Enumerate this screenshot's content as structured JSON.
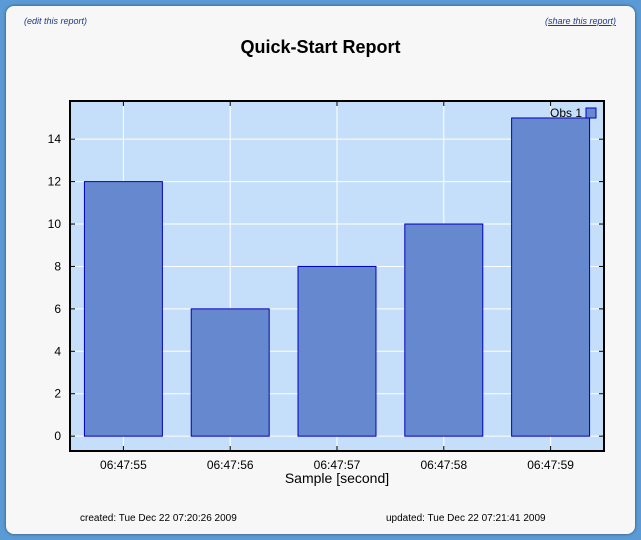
{
  "links": {
    "edit": "(edit this report)",
    "share": "(share this report)"
  },
  "report": {
    "title": "Quick-Start Report",
    "created": "created: Tue Dec 22 07:20:26 2009",
    "updated": "updated: Tue Dec 22 07:21:41 2009"
  },
  "colors": {
    "plot_bg": "#c5dffb",
    "bar_fill": "#6688cf",
    "bar_stroke": "#0000bb"
  },
  "chart_data": {
    "type": "bar",
    "categories": [
      "06:47:55",
      "06:47:56",
      "06:47:57",
      "06:47:58",
      "06:47:59"
    ],
    "series": [
      {
        "name": "Obs 1",
        "values": [
          12,
          6,
          8,
          10,
          15
        ]
      }
    ],
    "xlabel": "Sample [second]",
    "ylabel": "",
    "ylim": [
      -0.7,
      15.8
    ],
    "yticks": [
      0,
      2,
      4,
      6,
      8,
      10,
      12,
      14
    ],
    "grid": true,
    "legend": "top-right"
  }
}
